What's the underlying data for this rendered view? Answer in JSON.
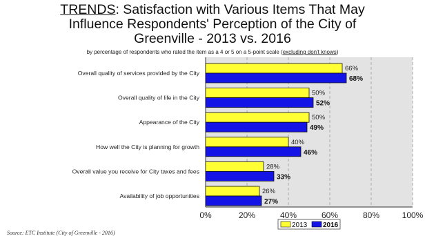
{
  "title": {
    "lead": "TRENDS",
    "rest_line1": ": Satisfaction with Various Items That May",
    "line2": "Influence Respondents' Perception of the City of",
    "line3": "Greenville - 2013 vs. 2016"
  },
  "subtitle": {
    "text": "by percentage of respondents who rated the item as a 4 or 5 on a 5-point scale (",
    "underlined": "excluding don't knows",
    "close": ")"
  },
  "source": "Source:  ETC Institute (City of Greenville - 2016)",
  "colors": {
    "2013": "#ffff33",
    "2016": "#1414e6",
    "plot_bg": "#e3e3e3"
  },
  "chart_data": {
    "type": "bar",
    "orientation": "horizontal",
    "categories": [
      "Overall quality of services provided by the City",
      "Overall quality of life in the City",
      "Appearance of the City",
      "How well the City is planning for growth",
      "Overall value you receive for City taxes and fees",
      "Availability of job opportunities"
    ],
    "series": [
      {
        "name": "2013",
        "values": [
          66,
          50,
          50,
          40,
          28,
          26
        ],
        "labels": [
          "66%",
          "50%",
          "50%",
          "40%",
          "28%",
          "26%"
        ]
      },
      {
        "name": "2016",
        "values": [
          68,
          52,
          49,
          46,
          33,
          27
        ],
        "labels": [
          "68%",
          "52%",
          "49%",
          "46%",
          "33%",
          "27%"
        ]
      }
    ],
    "xlim": [
      0,
      100
    ],
    "xticks": [
      "0%",
      "20%",
      "40%",
      "60%",
      "80%",
      "100%"
    ],
    "grid": true,
    "legend": "bottom"
  }
}
